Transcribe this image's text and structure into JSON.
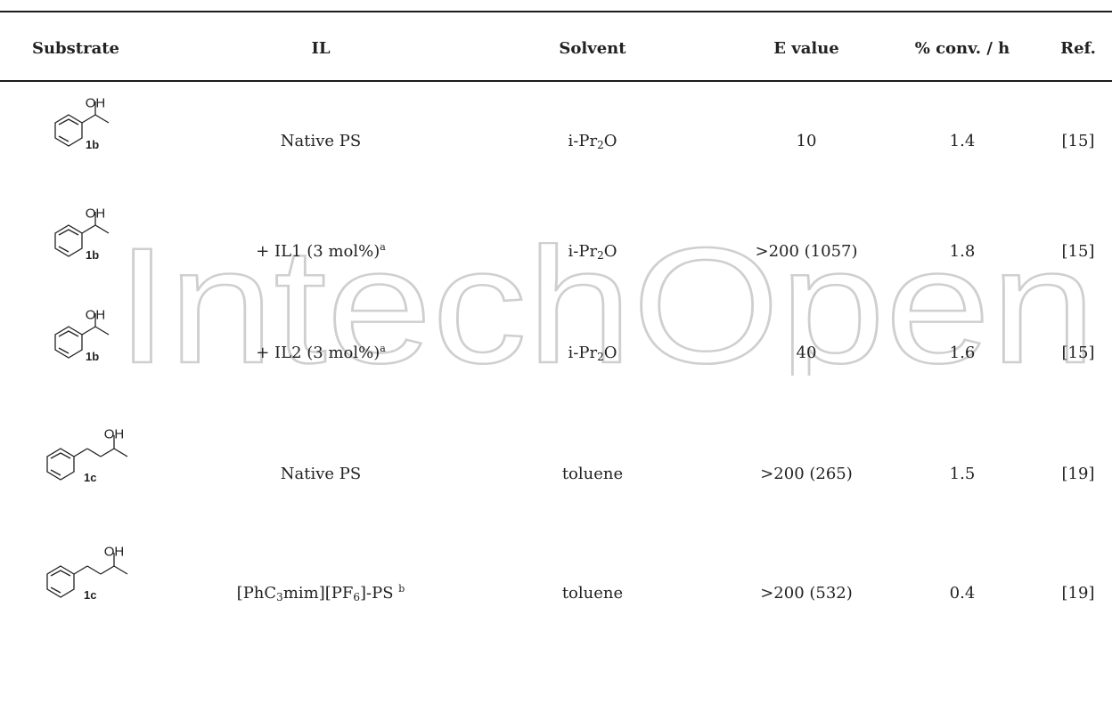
{
  "watermark": {
    "text": "IntechOpen",
    "color": "#c8c8c8"
  },
  "table": {
    "headers": {
      "substrate": "Substrate",
      "il": "IL",
      "solvent": "Solvent",
      "evalue": "E value",
      "conv": "% conv. / h",
      "ref": "Ref."
    },
    "rows": [
      {
        "substrate": {
          "oh": "OH",
          "label": "1b"
        },
        "il_main": "Native PS",
        "il_sup": "",
        "solvent_a": "i-Pr",
        "solvent_sub": "2",
        "solvent_b": "O",
        "evalue": "10",
        "conv": "1.4",
        "ref": "[15]"
      },
      {
        "substrate": {
          "oh": "OH",
          "label": "1b"
        },
        "il_main": "+ IL1 (3 mol%)",
        "il_sup": "a",
        "solvent_a": "i-Pr",
        "solvent_sub": "2",
        "solvent_b": "O",
        "evalue": ">200 (1057)",
        "conv": "1.8",
        "ref": "[15]"
      },
      {
        "substrate": {
          "oh": "OH",
          "label": "1b"
        },
        "il_main": "+ IL2 (3 mol%)",
        "il_sup": "a",
        "solvent_a": "i-Pr",
        "solvent_sub": "2",
        "solvent_b": "O",
        "evalue": "40",
        "conv": "1.6",
        "ref": "[15]"
      },
      {
        "substrate": {
          "oh": "OH",
          "label": "1c"
        },
        "il_main": "Native PS",
        "il_sup": "",
        "solvent_a": "toluene",
        "solvent_sub": "",
        "solvent_b": "",
        "evalue": ">200 (265)",
        "conv": "1.5",
        "ref": "[19]"
      },
      {
        "substrate": {
          "oh": "OH",
          "label": "1c"
        },
        "il_p1": "[PhC",
        "il_s1": "3",
        "il_p2": "mim][PF",
        "il_s2": "6",
        "il_p3": "]-PS",
        "il_sup": "b",
        "solvent_a": "toluene",
        "solvent_sub": "",
        "solvent_b": "",
        "evalue": ">200 (532)",
        "conv": "0.4",
        "ref": "[19]"
      }
    ]
  }
}
